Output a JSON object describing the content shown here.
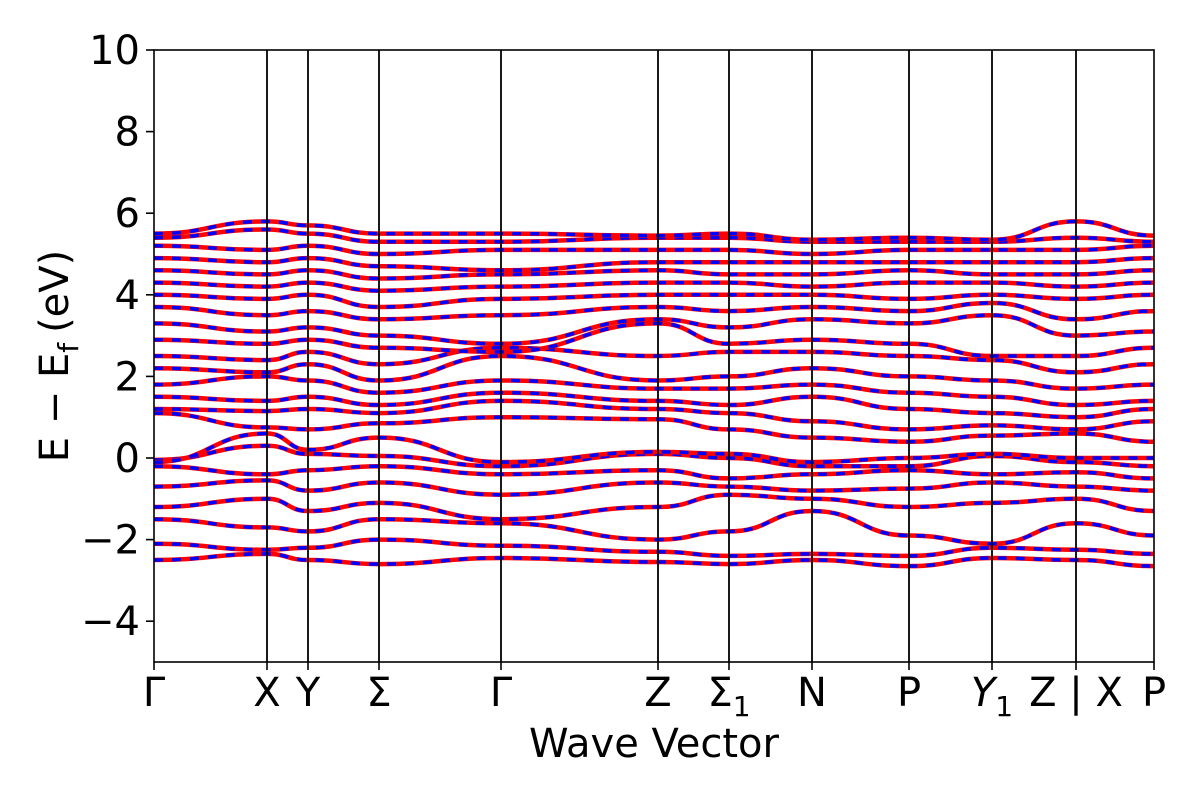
{
  "chart_data": {
    "type": "line",
    "title": "",
    "xlabel": "Wave Vector",
    "ylabel": "E − E",
    "ylabel_subscript": "f",
    "ylabel_unit": "(eV)",
    "ylim": [
      -5,
      10
    ],
    "xlim": [
      0,
      1
    ],
    "yticks": [
      -4,
      -2,
      0,
      2,
      4,
      6,
      8,
      10
    ],
    "ytick_labels": [
      "−4",
      "−2",
      "0",
      "2",
      "4",
      "6",
      "8",
      "10"
    ],
    "grid": false,
    "legend": "none",
    "band_color_solid": "#ff0000",
    "band_color_dashed": "#0000ff",
    "kpoints": [
      {
        "label": "Γ",
        "x": 0.0
      },
      {
        "label": "X",
        "x": 0.113
      },
      {
        "label": "Y",
        "x": 0.154
      },
      {
        "label": "Σ",
        "x": 0.225
      },
      {
        "label": "Γ",
        "x": 0.347
      },
      {
        "label": "Z",
        "x": 0.504
      },
      {
        "label": "Σ",
        "sub": "1",
        "x": 0.575
      },
      {
        "label": "N",
        "x": 0.658
      },
      {
        "label": "P",
        "x": 0.755
      },
      {
        "label": "Y",
        "sub": "1",
        "italic": true,
        "x": 0.838
      },
      {
        "label": "Z | X",
        "x": 0.922
      },
      {
        "label": "P",
        "x": 1.0
      }
    ],
    "bands": [
      {
        "x": [
          0,
          0.113,
          0.154,
          0.225,
          0.347,
          0.504,
          0.575,
          0.658,
          0.755,
          0.838,
          0.922,
          1.0
        ],
        "y": [
          -2.5,
          -2.35,
          -2.5,
          -2.6,
          -2.45,
          -2.55,
          -2.6,
          -2.5,
          -2.65,
          -2.45,
          -2.5,
          -2.65
        ]
      },
      {
        "x": [
          0,
          0.113,
          0.154,
          0.225,
          0.347,
          0.504,
          0.575,
          0.658,
          0.755,
          0.838,
          0.922,
          1.0
        ],
        "y": [
          -2.1,
          -2.25,
          -2.2,
          -2.0,
          -2.15,
          -2.3,
          -2.4,
          -2.35,
          -2.4,
          -2.2,
          -2.25,
          -2.35
        ]
      },
      {
        "x": [
          0,
          0.113,
          0.154,
          0.225,
          0.347,
          0.504,
          0.575,
          0.658,
          0.755,
          0.838,
          0.922,
          1.0
        ],
        "y": [
          -1.5,
          -1.7,
          -1.8,
          -1.5,
          -1.6,
          -2.0,
          -1.8,
          -1.3,
          -1.9,
          -2.1,
          -1.6,
          -1.9
        ]
      },
      {
        "x": [
          0,
          0.113,
          0.154,
          0.225,
          0.347,
          0.504,
          0.575,
          0.658,
          0.755,
          0.838,
          0.922,
          1.0
        ],
        "y": [
          -1.2,
          -1.0,
          -1.3,
          -1.1,
          -1.5,
          -1.2,
          -0.9,
          -1.0,
          -1.2,
          -1.1,
          -1.0,
          -1.3
        ]
      },
      {
        "x": [
          0,
          0.113,
          0.154,
          0.225,
          0.347,
          0.504,
          0.575,
          0.658,
          0.755,
          0.838,
          0.922,
          1.0
        ],
        "y": [
          -0.7,
          -0.55,
          -0.8,
          -0.6,
          -0.9,
          -0.6,
          -0.7,
          -0.8,
          -0.75,
          -0.6,
          -0.7,
          -0.8
        ]
      },
      {
        "x": [
          0,
          0.113,
          0.154,
          0.225,
          0.347,
          0.504,
          0.575,
          0.658,
          0.755,
          0.838,
          0.922,
          1.0
        ],
        "y": [
          -0.2,
          -0.4,
          -0.3,
          -0.2,
          -0.4,
          -0.3,
          -0.5,
          -0.4,
          -0.3,
          -0.4,
          -0.35,
          -0.5
        ]
      },
      {
        "x": [
          0,
          0.113,
          0.154,
          0.225,
          0.347,
          0.504,
          0.575,
          0.658,
          0.755,
          0.838,
          0.922,
          1.0
        ],
        "y": [
          -0.05,
          0.3,
          0.1,
          0.05,
          -0.2,
          0.1,
          0.0,
          -0.2,
          -0.2,
          0.05,
          -0.1,
          -0.2
        ]
      },
      {
        "x": [
          0,
          0.113,
          0.154,
          0.225,
          0.347,
          0.504,
          0.575,
          0.658,
          0.755,
          0.838,
          0.922,
          1.0
        ],
        "y": [
          -0.1,
          0.6,
          0.2,
          0.5,
          -0.1,
          0.15,
          0.1,
          -0.1,
          0.0,
          0.1,
          0.0,
          0.0
        ]
      },
      {
        "x": [
          0,
          0.113,
          0.154,
          0.225,
          0.347,
          0.504,
          0.575,
          0.658,
          0.755,
          0.838,
          0.922,
          1.0
        ],
        "y": [
          1.1,
          0.75,
          0.7,
          0.85,
          1.0,
          0.95,
          0.7,
          0.5,
          0.4,
          0.55,
          0.6,
          0.4
        ]
      },
      {
        "x": [
          0,
          0.113,
          0.154,
          0.225,
          0.347,
          0.504,
          0.575,
          0.658,
          0.755,
          0.838,
          0.922,
          1.0
        ],
        "y": [
          1.2,
          1.15,
          1.2,
          1.1,
          1.4,
          1.2,
          1.1,
          0.9,
          0.7,
          0.8,
          0.7,
          0.9
        ]
      },
      {
        "x": [
          0,
          0.113,
          0.154,
          0.225,
          0.347,
          0.504,
          0.575,
          0.658,
          0.755,
          0.838,
          0.922,
          1.0
        ],
        "y": [
          1.5,
          1.4,
          1.5,
          1.3,
          1.6,
          1.4,
          1.3,
          1.5,
          1.2,
          1.1,
          1.0,
          1.2
        ]
      },
      {
        "x": [
          0,
          0.113,
          0.154,
          0.225,
          0.347,
          0.504,
          0.575,
          0.658,
          0.755,
          0.838,
          0.922,
          1.0
        ],
        "y": [
          1.8,
          2.0,
          1.9,
          1.6,
          1.9,
          1.7,
          1.7,
          1.8,
          1.6,
          1.5,
          1.3,
          1.4
        ]
      },
      {
        "x": [
          0,
          0.113,
          0.154,
          0.225,
          0.347,
          0.504,
          0.575,
          0.658,
          0.755,
          0.838,
          0.922,
          1.0
        ],
        "y": [
          2.2,
          2.1,
          2.3,
          1.9,
          2.5,
          1.9,
          2.0,
          2.2,
          2.0,
          1.9,
          1.7,
          1.8
        ]
      },
      {
        "x": [
          0,
          0.113,
          0.154,
          0.225,
          0.347,
          0.504,
          0.575,
          0.658,
          0.755,
          0.838,
          0.922,
          1.0
        ],
        "y": [
          2.5,
          2.4,
          2.6,
          2.3,
          2.7,
          2.5,
          2.6,
          2.6,
          2.5,
          2.4,
          2.1,
          2.3
        ]
      },
      {
        "x": [
          0,
          0.113,
          0.154,
          0.225,
          0.347,
          0.504,
          0.575,
          0.658,
          0.755,
          0.838,
          0.922,
          1.0
        ],
        "y": [
          2.9,
          2.8,
          2.9,
          2.7,
          2.6,
          3.3,
          2.8,
          2.9,
          2.8,
          2.5,
          2.5,
          2.7
        ]
      },
      {
        "x": [
          0,
          0.113,
          0.154,
          0.225,
          0.347,
          0.504,
          0.575,
          0.658,
          0.755,
          0.838,
          0.922,
          1.0
        ],
        "y": [
          3.3,
          3.1,
          3.2,
          3.0,
          2.8,
          3.4,
          3.2,
          3.4,
          3.3,
          3.5,
          3.0,
          3.1
        ]
      },
      {
        "x": [
          0,
          0.113,
          0.154,
          0.225,
          0.347,
          0.504,
          0.575,
          0.658,
          0.755,
          0.838,
          0.922,
          1.0
        ],
        "y": [
          3.7,
          3.5,
          3.6,
          3.4,
          3.5,
          3.7,
          3.6,
          3.7,
          3.6,
          3.8,
          3.4,
          3.6
        ]
      },
      {
        "x": [
          0,
          0.113,
          0.154,
          0.225,
          0.347,
          0.504,
          0.575,
          0.658,
          0.755,
          0.838,
          0.922,
          1.0
        ],
        "y": [
          4.0,
          3.9,
          4.0,
          3.7,
          3.9,
          4.0,
          4.0,
          4.0,
          3.9,
          4.0,
          3.9,
          4.0
        ]
      },
      {
        "x": [
          0,
          0.113,
          0.154,
          0.225,
          0.347,
          0.504,
          0.575,
          0.658,
          0.755,
          0.838,
          0.922,
          1.0
        ],
        "y": [
          4.3,
          4.2,
          4.3,
          4.1,
          4.2,
          4.3,
          4.3,
          4.2,
          4.3,
          4.3,
          4.2,
          4.3
        ]
      },
      {
        "x": [
          0,
          0.113,
          0.154,
          0.225,
          0.347,
          0.504,
          0.575,
          0.658,
          0.755,
          0.838,
          0.922,
          1.0
        ],
        "y": [
          4.6,
          4.5,
          4.6,
          4.4,
          4.5,
          4.6,
          4.5,
          4.5,
          4.6,
          4.5,
          4.5,
          4.6
        ]
      },
      {
        "x": [
          0,
          0.113,
          0.154,
          0.225,
          0.347,
          0.504,
          0.575,
          0.658,
          0.755,
          0.838,
          0.922,
          1.0
        ],
        "y": [
          4.9,
          4.8,
          4.9,
          4.7,
          4.6,
          4.8,
          4.8,
          4.8,
          4.8,
          4.8,
          4.8,
          4.9
        ]
      },
      {
        "x": [
          0,
          0.113,
          0.154,
          0.225,
          0.347,
          0.504,
          0.575,
          0.658,
          0.755,
          0.838,
          0.922,
          1.0
        ],
        "y": [
          5.2,
          5.1,
          5.2,
          5.0,
          5.1,
          5.1,
          5.1,
          5.0,
          5.1,
          5.1,
          5.1,
          5.2
        ]
      },
      {
        "x": [
          0,
          0.113,
          0.154,
          0.225,
          0.347,
          0.504,
          0.575,
          0.658,
          0.755,
          0.838,
          0.922,
          1.0
        ],
        "y": [
          5.4,
          5.6,
          5.5,
          5.3,
          5.3,
          5.4,
          5.4,
          5.3,
          5.3,
          5.3,
          5.4,
          5.3
        ]
      },
      {
        "x": [
          0,
          0.113,
          0.154,
          0.225,
          0.347,
          0.504,
          0.575,
          0.658,
          0.755,
          0.838,
          0.922,
          1.0
        ],
        "y": [
          5.5,
          5.8,
          5.7,
          5.5,
          5.5,
          5.45,
          5.5,
          5.35,
          5.4,
          5.35,
          5.8,
          5.45
        ]
      }
    ]
  }
}
